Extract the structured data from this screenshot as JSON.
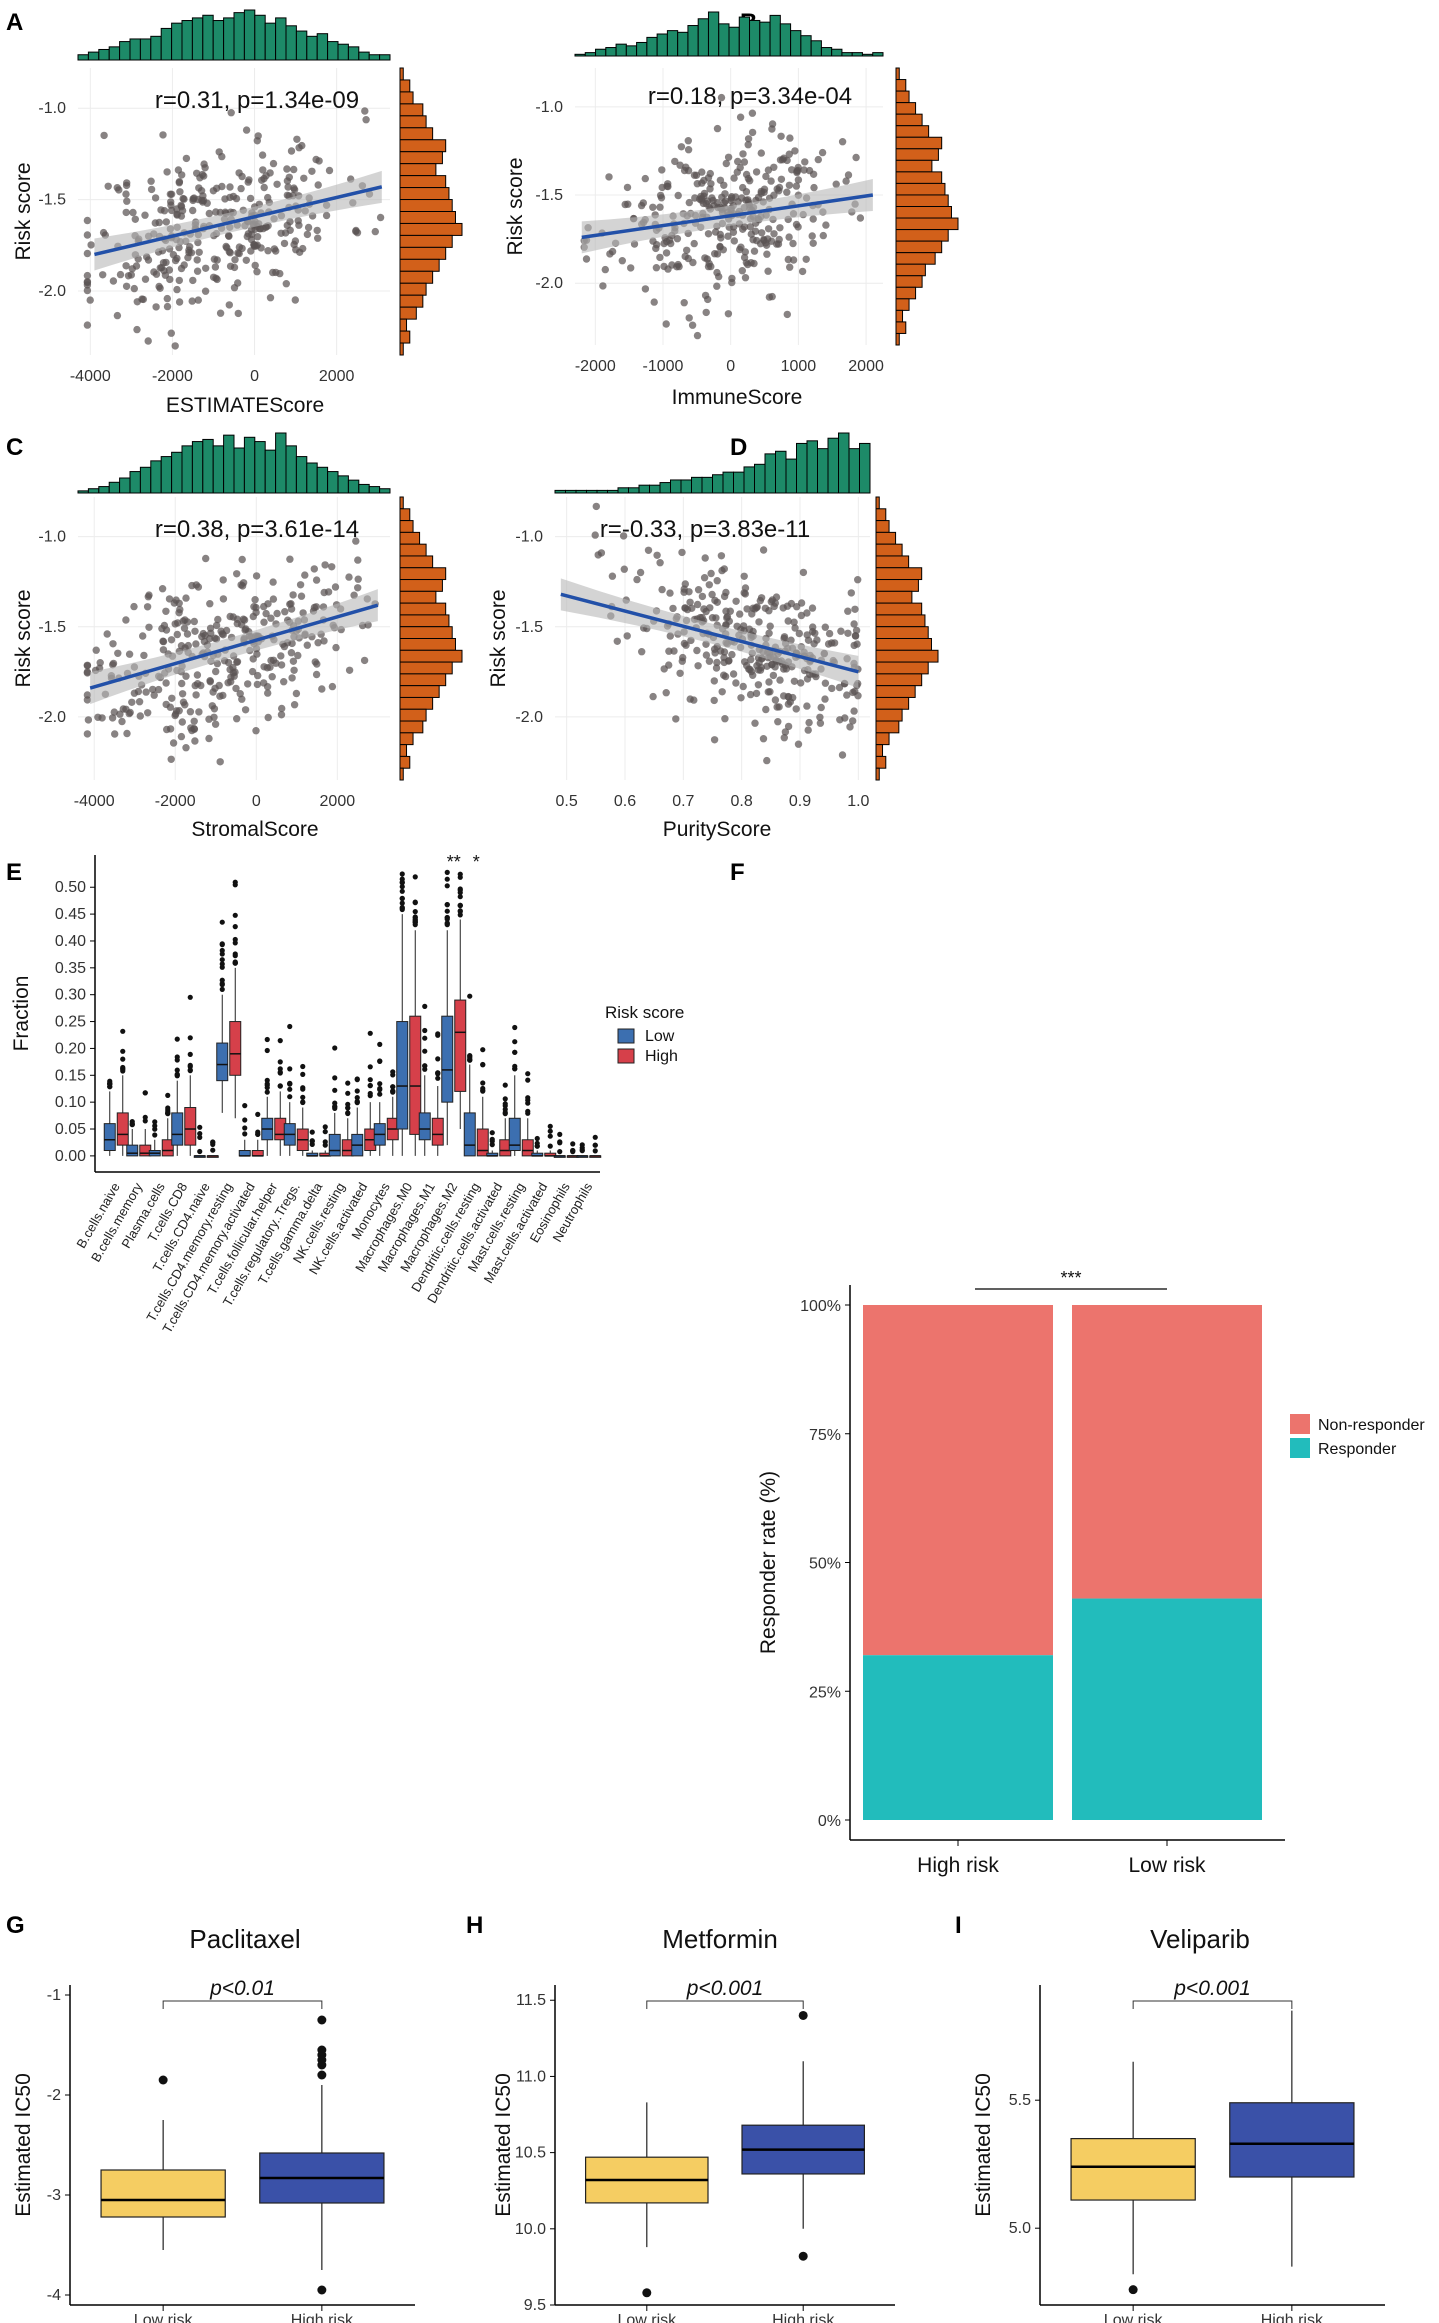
{
  "chart_data": [
    {
      "panel": "A",
      "type": "scatter",
      "xlabel": "ESTIMATEScore",
      "ylabel": "Risk score",
      "annotation": "r=0.31, p=1.34e-09",
      "xlim": [
        -4300,
        3300
      ],
      "ylim": [
        -2.35,
        -0.78
      ],
      "xticks": [
        -4000,
        -2000,
        0,
        2000
      ],
      "xtick_labels": [
        "-4000",
        "-2000",
        "0",
        "2000"
      ],
      "yticks": [
        -1.0,
        -1.5,
        -2.0
      ],
      "ytick_labels": [
        "-1.0",
        "-1.5",
        "-2.0"
      ],
      "fit": {
        "x0": -3900,
        "y0": -1.8,
        "x1": 3100,
        "y1": -1.43
      },
      "cloud": {
        "x_mean": -900,
        "x_sd": 1550,
        "y_mean": -1.62,
        "y_sd": 0.22,
        "n": 340,
        "seed": 11
      },
      "top_hist": [
        2,
        3,
        4,
        5,
        7,
        8,
        8,
        9,
        12,
        14,
        15,
        16,
        17,
        15,
        16,
        18,
        19,
        17,
        14,
        16,
        13,
        11,
        9,
        10,
        7,
        6,
        5,
        3,
        2,
        2
      ],
      "right_hist": [
        1,
        3,
        4,
        7,
        8,
        10,
        14,
        13,
        11,
        14,
        15,
        16,
        17,
        19,
        16,
        14,
        12,
        10,
        8,
        7,
        5,
        2,
        3,
        1
      ]
    },
    {
      "panel": "B",
      "type": "scatter",
      "xlabel": "ImmuneScore",
      "ylabel": "Risk score",
      "annotation": "r=0.18, p=3.34e-04",
      "xlim": [
        -2300,
        2250
      ],
      "ylim": [
        -2.35,
        -0.78
      ],
      "xticks": [
        -2000,
        -1000,
        0,
        1000,
        2000
      ],
      "xtick_labels": [
        "-2000",
        "-1000",
        "0",
        "1000",
        "2000"
      ],
      "yticks": [
        -1.0,
        -1.5,
        -2.0
      ],
      "ytick_labels": [
        "-1.0",
        "-1.5",
        "-2.0"
      ],
      "fit": {
        "x0": -2200,
        "y0": -1.74,
        "x1": 2100,
        "y1": -1.5
      },
      "cloud": {
        "x_mean": -100,
        "x_sd": 800,
        "y_mean": -1.62,
        "y_sd": 0.22,
        "n": 330,
        "seed": 23
      },
      "top_hist": [
        1,
        2,
        4,
        5,
        7,
        6,
        8,
        11,
        13,
        15,
        14,
        18,
        22,
        26,
        19,
        17,
        23,
        21,
        20,
        24,
        19,
        15,
        12,
        9,
        5,
        4,
        2,
        2,
        1,
        2
      ],
      "right_hist": [
        1,
        3,
        4,
        6,
        8,
        10,
        14,
        13,
        11,
        14,
        15,
        16,
        17,
        19,
        16,
        14,
        12,
        9,
        8,
        6,
        4,
        2,
        3,
        1
      ]
    },
    {
      "panel": "C",
      "type": "scatter",
      "xlabel": "StromalScore",
      "ylabel": "Risk score",
      "annotation": "r=0.38, p=3.61e-14",
      "xlim": [
        -4400,
        3300
      ],
      "ylim": [
        -2.35,
        -0.78
      ],
      "xticks": [
        -4000,
        -2000,
        0,
        2000
      ],
      "xtick_labels": [
        "-4000",
        "-2000",
        "0",
        "2000"
      ],
      "yticks": [
        -1.0,
        -1.5,
        -2.0
      ],
      "ytick_labels": [
        "-1.0",
        "-1.5",
        "-2.0"
      ],
      "fit": {
        "x0": -4100,
        "y0": -1.84,
        "x1": 3000,
        "y1": -1.38
      },
      "cloud": {
        "x_mean": -900,
        "x_sd": 1600,
        "y_mean": -1.62,
        "y_sd": 0.22,
        "n": 340,
        "seed": 37
      },
      "top_hist": [
        1,
        2,
        3,
        5,
        7,
        10,
        12,
        15,
        17,
        19,
        22,
        24,
        25,
        22,
        27,
        21,
        26,
        24,
        20,
        28,
        22,
        17,
        14,
        12,
        10,
        8,
        6,
        4,
        3,
        2
      ],
      "right_hist": [
        1,
        3,
        4,
        6,
        8,
        10,
        14,
        13,
        11,
        14,
        15,
        16,
        17,
        19,
        16,
        14,
        12,
        10,
        8,
        7,
        4,
        2,
        3,
        1
      ]
    },
    {
      "panel": "D",
      "type": "scatter",
      "xlabel": "PurityScore",
      "ylabel": "Risk score",
      "annotation": "r=-0.33, p=3.83e-11",
      "xlim": [
        0.48,
        1.02
      ],
      "ylim": [
        -2.35,
        -0.78
      ],
      "xticks": [
        0.5,
        0.6,
        0.7,
        0.8,
        0.9,
        1.0
      ],
      "xtick_labels": [
        "0.5",
        "0.6",
        "0.7",
        "0.8",
        "0.9",
        "1.0"
      ],
      "yticks": [
        -1.0,
        -1.5,
        -2.0
      ],
      "ytick_labels": [
        "-1.0",
        "-1.5",
        "-2.0"
      ],
      "fit": {
        "x0": 0.49,
        "y0": -1.32,
        "x1": 1.0,
        "y1": -1.75
      },
      "cloud": {
        "x_mean": 0.83,
        "x_sd": 0.11,
        "y_mean": -1.62,
        "y_sd": 0.22,
        "n": 340,
        "seed": 53,
        "x_max": 1.0
      },
      "top_hist": [
        1,
        1,
        1,
        1,
        1,
        1,
        2,
        2,
        3,
        3,
        4,
        5,
        5,
        6,
        6,
        7,
        8,
        8,
        10,
        11,
        15,
        16,
        13,
        19,
        20,
        17,
        21,
        23,
        17,
        19
      ],
      "right_hist": [
        1,
        3,
        4,
        6,
        8,
        10,
        14,
        13,
        11,
        14,
        15,
        16,
        17,
        19,
        16,
        14,
        12,
        10,
        8,
        7,
        4,
        2,
        3,
        1
      ]
    },
    {
      "panel": "E",
      "type": "box",
      "ylabel": "Fraction",
      "ylim": [
        -0.03,
        0.56
      ],
      "yticks": [
        0.0,
        0.05,
        0.1,
        0.15,
        0.2,
        0.25,
        0.3,
        0.35,
        0.4,
        0.45,
        0.5
      ],
      "ytick_labels": [
        "0.00",
        "0.05",
        "0.10",
        "0.15",
        "0.20",
        "0.25",
        "0.30",
        "0.35",
        "0.40",
        "0.45",
        "0.50"
      ],
      "legend_title": "Risk score",
      "series": [
        {
          "name": "Low",
          "color": "#3C6FB0"
        },
        {
          "name": "High",
          "color": "#D6404A"
        }
      ],
      "categories": [
        "B.cells.naive",
        "B.cells.memory",
        "Plasma.cells",
        "T.cells.CD8",
        "T.cells.CD4.naive",
        "T.cells.CD4.memory.resting",
        "T.cells.CD4.memory.activated",
        "T.cells.follicular.helper",
        "T.cells.regulatory..Tregs.",
        "T.cells.gamma.delta",
        "NK.cells.resting",
        "NK.cells.activated",
        "Monocytes",
        "Macrophages.M0",
        "Macrophages.M1",
        "Macrophages.M2",
        "Dendritic.cells.resting",
        "Dendritic.cells.activated",
        "Mast.cells.resting",
        "Mast.cells.activated",
        "Eosinophils",
        "Neutrophils"
      ],
      "significance": [
        {
          "category": "Macrophages.M2",
          "label": "**"
        },
        {
          "category": "Dendritic.cells.resting",
          "label": "*"
        }
      ],
      "low": [
        [
          0,
          0.01,
          0.03,
          0.06,
          0.12
        ],
        [
          0,
          0,
          0.005,
          0.02,
          0.05
        ],
        [
          0,
          0,
          0.005,
          0.01,
          0.03
        ],
        [
          0,
          0.02,
          0.04,
          0.08,
          0.14
        ],
        [
          0,
          0,
          0,
          0,
          0
        ],
        [
          0.08,
          0.14,
          0.17,
          0.21,
          0.3
        ],
        [
          0,
          0,
          0,
          0.01,
          0.03
        ],
        [
          0,
          0.03,
          0.05,
          0.07,
          0.11
        ],
        [
          0,
          0.02,
          0.04,
          0.06,
          0.1
        ],
        [
          0,
          0,
          0,
          0.005,
          0.01
        ],
        [
          0,
          0,
          0.01,
          0.04,
          0.08
        ],
        [
          0,
          0,
          0.02,
          0.04,
          0.09
        ],
        [
          0,
          0.02,
          0.04,
          0.06,
          0.1
        ],
        [
          0,
          0.05,
          0.13,
          0.25,
          0.45
        ],
        [
          0,
          0.03,
          0.05,
          0.08,
          0.15
        ],
        [
          0.02,
          0.1,
          0.16,
          0.26,
          0.42
        ],
        [
          0,
          0,
          0.02,
          0.08,
          0.17
        ],
        [
          0,
          0,
          0,
          0.005,
          0.01
        ],
        [
          0,
          0.01,
          0.02,
          0.07,
          0.15
        ],
        [
          0,
          0,
          0,
          0.005,
          0.01
        ],
        [
          0,
          0,
          0,
          0,
          0
        ],
        [
          0,
          0,
          0,
          0,
          0
        ]
      ],
      "high": [
        [
          0,
          0.02,
          0.04,
          0.08,
          0.15
        ],
        [
          0,
          0,
          0.005,
          0.02,
          0.05
        ],
        [
          0,
          0,
          0.01,
          0.03,
          0.07
        ],
        [
          0,
          0.02,
          0.05,
          0.09,
          0.15
        ],
        [
          0,
          0,
          0,
          0,
          0
        ],
        [
          0.07,
          0.15,
          0.19,
          0.25,
          0.35
        ],
        [
          0,
          0,
          0,
          0.01,
          0.03
        ],
        [
          0,
          0.03,
          0.04,
          0.07,
          0.12
        ],
        [
          0,
          0.01,
          0.03,
          0.05,
          0.09
        ],
        [
          0,
          0,
          0,
          0.005,
          0.01
        ],
        [
          0,
          0,
          0.01,
          0.03,
          0.07
        ],
        [
          0,
          0.01,
          0.03,
          0.05,
          0.1
        ],
        [
          0,
          0.03,
          0.05,
          0.07,
          0.11
        ],
        [
          0,
          0.04,
          0.13,
          0.26,
          0.42
        ],
        [
          0,
          0.02,
          0.04,
          0.07,
          0.13
        ],
        [
          0.05,
          0.12,
          0.23,
          0.29,
          0.44
        ],
        [
          0,
          0,
          0.01,
          0.05,
          0.11
        ],
        [
          0,
          0,
          0.01,
          0.03,
          0.07
        ],
        [
          0,
          0,
          0.01,
          0.03,
          0.07
        ],
        [
          0,
          0,
          0,
          0.005,
          0.01
        ],
        [
          0,
          0,
          0,
          0,
          0
        ],
        [
          0,
          0,
          0,
          0,
          0
        ]
      ]
    },
    {
      "panel": "F",
      "type": "bar",
      "stacked": true,
      "ylabel": "Responder rate (%)",
      "categories": [
        "High risk",
        "Low risk"
      ],
      "yticks": [
        0,
        25,
        50,
        75,
        100
      ],
      "ytick_labels": [
        "0%",
        "25%",
        "50%",
        "75%",
        "100%"
      ],
      "series": [
        {
          "name": "Non-responder",
          "color": "#EC746D",
          "values": [
            68,
            57
          ]
        },
        {
          "name": "Responder",
          "color": "#22BCBC",
          "values": [
            32,
            43
          ]
        }
      ],
      "significance": "***"
    },
    {
      "panel": "G",
      "type": "box",
      "title": "Paclitaxel",
      "ylabel": "Estimated IC50",
      "ylim": [
        -4.1,
        -0.9
      ],
      "yticks": [
        -1,
        -2,
        -3,
        -4
      ],
      "ytick_labels": [
        "-1",
        "-2",
        "-3",
        "-4"
      ],
      "categories": [
        "Low risk",
        "High risk"
      ],
      "colors": [
        "#F5CD62",
        "#3A51A8"
      ],
      "stats": [
        [
          -3.55,
          -3.22,
          -3.05,
          -2.75,
          -2.25
        ],
        [
          -3.75,
          -3.08,
          -2.83,
          -2.58,
          -1.9
        ]
      ],
      "outliers": [
        [
          -1.85
        ],
        [
          -1.25,
          -1.55,
          -1.6,
          -1.65,
          -1.7,
          -1.8,
          -3.95
        ]
      ],
      "pvalue": "p<0.01"
    },
    {
      "panel": "H",
      "type": "box",
      "title": "Metformin",
      "ylabel": "Estimated IC50",
      "ylim": [
        9.5,
        11.6
      ],
      "yticks": [
        9.5,
        10.0,
        10.5,
        11.0,
        11.5
      ],
      "ytick_labels": [
        "9.5",
        "10.0",
        "10.5",
        "11.0",
        "11.5"
      ],
      "categories": [
        "Low risk",
        "High risk"
      ],
      "colors": [
        "#F5CD62",
        "#3A51A8"
      ],
      "stats": [
        [
          9.88,
          10.17,
          10.32,
          10.47,
          10.83
        ],
        [
          10.0,
          10.36,
          10.52,
          10.68,
          11.1
        ]
      ],
      "outliers": [
        [
          9.58
        ],
        [
          11.4,
          9.82
        ]
      ],
      "pvalue": "p<0.001"
    },
    {
      "panel": "I",
      "type": "box",
      "title": "Veliparib",
      "ylabel": "Estimated IC50",
      "ylim": [
        4.7,
        5.95
      ],
      "yticks": [
        5.0,
        5.5
      ],
      "ytick_labels": [
        "5.0",
        "5.5"
      ],
      "categories": [
        "Low risk",
        "High risk"
      ],
      "colors": [
        "#F5CD62",
        "#3A51A8"
      ],
      "stats": [
        [
          4.82,
          5.11,
          5.24,
          5.35,
          5.65
        ],
        [
          4.85,
          5.2,
          5.33,
          5.49,
          5.85
        ]
      ],
      "outliers": [
        [
          4.76
        ],
        []
      ],
      "pvalue": "p<0.001"
    }
  ],
  "figure": {
    "panel_labels": [
      "A",
      "B",
      "C",
      "D",
      "E",
      "F",
      "G",
      "H",
      "I"
    ],
    "colors": {
      "histogram_top": "#1D8A68",
      "histogram_right": "#D2601A",
      "fit_line": "#2250A8",
      "fit_band": "#B8B8B8",
      "point": "#5A5353"
    }
  }
}
